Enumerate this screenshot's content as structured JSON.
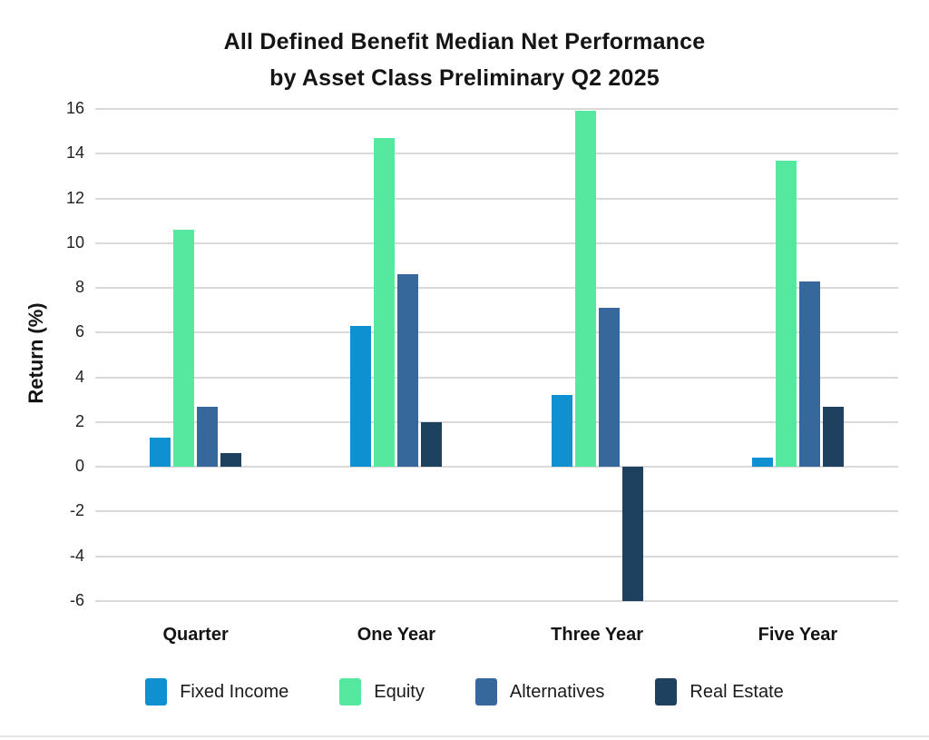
{
  "chart": {
    "title_line1": "All Defined Benefit Median Net Performance",
    "title_line2": "by Asset Class Preliminary Q2 2025",
    "ylabel": "Return (%)"
  },
  "chart_data": {
    "type": "bar",
    "title": "All Defined Benefit Median Net Performance by Asset Class Preliminary Q2 2025",
    "xlabel": "",
    "ylabel": "Return (%)",
    "categories": [
      "Quarter",
      "One Year",
      "Three Year",
      "Five Year"
    ],
    "series": [
      {
        "name": "Fixed Income",
        "color": "#0f90d1",
        "values": [
          1.3,
          6.3,
          3.2,
          0.4
        ]
      },
      {
        "name": "Equity",
        "color": "#55e89f",
        "values": [
          10.6,
          14.7,
          15.9,
          13.7
        ]
      },
      {
        "name": "Alternatives",
        "color": "#36689c",
        "values": [
          2.7,
          8.6,
          7.1,
          8.3
        ]
      },
      {
        "name": "Real Estate",
        "color": "#1e4160",
        "values": [
          0.6,
          2.0,
          -6.0,
          2.7
        ]
      }
    ],
    "ylim": [
      -6,
      16
    ],
    "yticks": [
      16,
      14,
      12,
      10,
      8,
      6,
      4,
      2,
      0,
      -2,
      -4,
      -6
    ],
    "grid": "horizontal",
    "gridline_color": "#d9d9d9",
    "text_color": "#1a1a1a",
    "legend_position": "bottom"
  }
}
